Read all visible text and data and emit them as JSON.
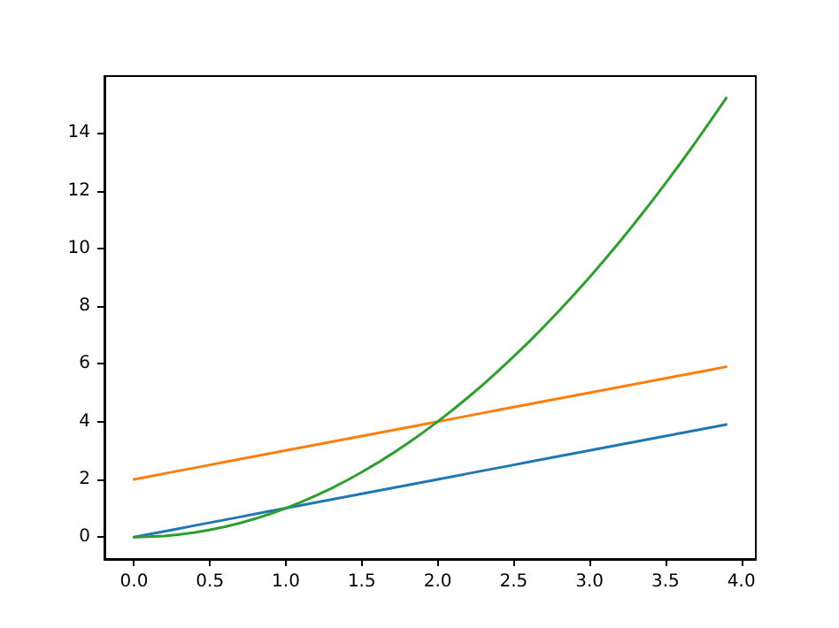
{
  "chart_data": {
    "type": "line",
    "x": [
      0,
      0.1,
      0.2,
      0.3,
      0.4,
      0.5,
      0.6,
      0.7,
      0.8,
      0.9,
      1,
      1.1,
      1.2,
      1.3,
      1.4,
      1.5,
      1.6,
      1.7,
      1.8,
      1.9,
      2,
      2.1,
      2.2,
      2.3,
      2.4,
      2.5,
      2.6,
      2.7,
      2.8,
      2.9,
      3,
      3.1,
      3.2,
      3.3,
      3.4,
      3.5,
      3.6,
      3.7,
      3.8,
      3.9
    ],
    "series": [
      {
        "color": "#1f77b4",
        "values": [
          0,
          0.1,
          0.2,
          0.3,
          0.4,
          0.5,
          0.6,
          0.7,
          0.8,
          0.9,
          1,
          1.1,
          1.2,
          1.3,
          1.4,
          1.5,
          1.6,
          1.7,
          1.8,
          1.9,
          2,
          2.1,
          2.2,
          2.3,
          2.4,
          2.5,
          2.6,
          2.7,
          2.8,
          2.9,
          3,
          3.1,
          3.2,
          3.3,
          3.4,
          3.5,
          3.6,
          3.7,
          3.8,
          3.9
        ]
      },
      {
        "color": "#ff7f0e",
        "values": [
          2,
          2.1,
          2.2,
          2.3,
          2.4,
          2.5,
          2.6,
          2.7,
          2.8,
          2.9,
          3,
          3.1,
          3.2,
          3.3,
          3.4,
          3.5,
          3.6,
          3.7,
          3.8,
          3.9,
          4,
          4.1,
          4.2,
          4.3,
          4.4,
          4.5,
          4.6,
          4.7,
          4.8,
          4.9,
          5,
          5.1,
          5.2,
          5.3,
          5.4,
          5.5,
          5.6,
          5.7,
          5.8,
          5.9
        ]
      },
      {
        "color": "#2ca02c",
        "values": [
          0,
          0.01,
          0.04,
          0.09,
          0.16,
          0.25,
          0.36,
          0.49,
          0.64,
          0.81,
          1,
          1.21,
          1.44,
          1.69,
          1.96,
          2.25,
          2.56,
          2.89,
          3.24,
          3.61,
          4,
          4.41,
          4.84,
          5.29,
          5.76,
          6.25,
          6.76,
          7.29,
          7.84,
          8.41,
          9,
          9.61,
          10.24,
          10.89,
          11.56,
          12.25,
          12.96,
          13.69,
          14.44,
          15.21
        ]
      }
    ],
    "xlim": [
      -0.195,
      4.095
    ],
    "xticks": [
      {
        "value": 0,
        "label": "0.0"
      },
      {
        "value": 0.5,
        "label": "0.5"
      },
      {
        "value": 1,
        "label": "1.0"
      },
      {
        "value": 1.5,
        "label": "1.5"
      },
      {
        "value": 2,
        "label": "2.0"
      },
      {
        "value": 2.5,
        "label": "2.5"
      },
      {
        "value": 3,
        "label": "3.0"
      },
      {
        "value": 3.5,
        "label": "3.5"
      },
      {
        "value": 4,
        "label": "4.0"
      }
    ],
    "ylim": [
      -0.76,
      15.97
    ],
    "yticks": [
      0,
      2,
      4,
      6,
      8,
      10,
      12,
      14
    ],
    "grid": false,
    "marker": "none",
    "line_style": "solid"
  }
}
